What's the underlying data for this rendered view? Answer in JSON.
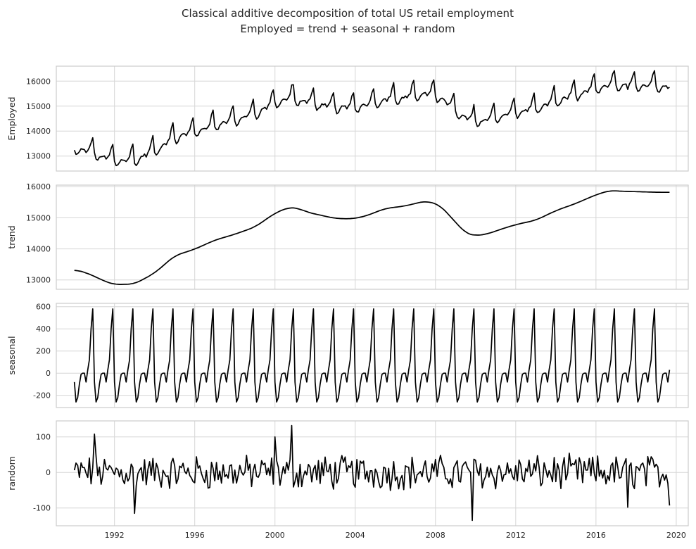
{
  "title_line1": "Classical additive decomposition of total US retail employment",
  "title_line2": "Employed = trend + seasonal + random",
  "line_color": "#000000",
  "chart_data": [
    {
      "type": "line",
      "ylabel": "Employed",
      "yticks": [
        13000,
        14000,
        15000,
        16000
      ],
      "ylim": [
        12400,
        16600
      ],
      "xlim": [
        1989.1,
        2020.6
      ],
      "xticks": [
        1992,
        1996,
        2000,
        2004,
        2008,
        2012,
        2016,
        2020
      ],
      "x_start": 1990.0,
      "x_step": 0.083333,
      "trend_knots": [
        [
          1990,
          13340
        ],
        [
          1990.5,
          13250
        ],
        [
          1991,
          13120
        ],
        [
          1991.5,
          12960
        ],
        [
          1992,
          12850
        ],
        [
          1993,
          12870
        ],
        [
          1994,
          13220
        ],
        [
          1995,
          13780
        ],
        [
          1996,
          13990
        ],
        [
          1997,
          14280
        ],
        [
          1998,
          14470
        ],
        [
          1999,
          14700
        ],
        [
          2000,
          15150
        ],
        [
          2000.7,
          15340
        ],
        [
          2001.2,
          15300
        ],
        [
          2001.6,
          15180
        ],
        [
          2002,
          15120
        ],
        [
          2003,
          14980
        ],
        [
          2003.8,
          14960
        ],
        [
          2004.5,
          15050
        ],
        [
          2005.5,
          15300
        ],
        [
          2006.5,
          15380
        ],
        [
          2007.5,
          15540
        ],
        [
          2008.2,
          15420
        ],
        [
          2008.9,
          14930
        ],
        [
          2009.5,
          14500
        ],
        [
          2010,
          14420
        ],
        [
          2010.6,
          14480
        ],
        [
          2011.3,
          14640
        ],
        [
          2012,
          14780
        ],
        [
          2013,
          14920
        ],
        [
          2014,
          15230
        ],
        [
          2015,
          15460
        ],
        [
          2016,
          15740
        ],
        [
          2016.7,
          15880
        ],
        [
          2017.3,
          15850
        ],
        [
          2018,
          15840
        ],
        [
          2019,
          15820
        ],
        [
          2019.7,
          15820
        ]
      ],
      "seasonal_pattern": [
        -80,
        -260,
        -220,
        -100,
        -10,
        0,
        0,
        -80,
        30,
        120,
        400,
        580
      ],
      "random_amplitude": 40
    },
    {
      "type": "line",
      "ylabel": "trend",
      "yticks": [
        13000,
        14000,
        15000,
        16000
      ],
      "ylim": [
        12700,
        16050
      ],
      "xlim": [
        1989.1,
        2020.6
      ],
      "xticks": [
        1992,
        1996,
        2000,
        2004,
        2008,
        2012,
        2016,
        2020
      ]
    },
    {
      "type": "line",
      "ylabel": "seasonal",
      "yticks": [
        -200,
        0,
        200,
        400,
        600
      ],
      "ylim": [
        -310,
        630
      ],
      "xlim": [
        1989.1,
        2020.6
      ],
      "xticks": [
        1992,
        1996,
        2000,
        2004,
        2008,
        2012,
        2016,
        2020
      ],
      "pattern": [
        -80,
        -260,
        -220,
        -100,
        -10,
        0,
        0,
        -80,
        30,
        120,
        400,
        580
      ]
    },
    {
      "type": "line",
      "ylabel": "random",
      "yticks": [
        -100,
        0,
        100
      ],
      "ylim": [
        -150,
        145
      ],
      "xlim": [
        1989.1,
        2020.6
      ],
      "xticks": [
        1992,
        1996,
        2000,
        2004,
        2008,
        2012,
        2016,
        2020
      ],
      "extremes": [
        [
          1991.0,
          108
        ],
        [
          1993.0,
          -115
        ],
        [
          2000.0,
          100
        ],
        [
          2000.85,
          132
        ],
        [
          2009.8,
          -135
        ],
        [
          2017.6,
          -98
        ],
        [
          2019.7,
          -93
        ]
      ]
    }
  ]
}
